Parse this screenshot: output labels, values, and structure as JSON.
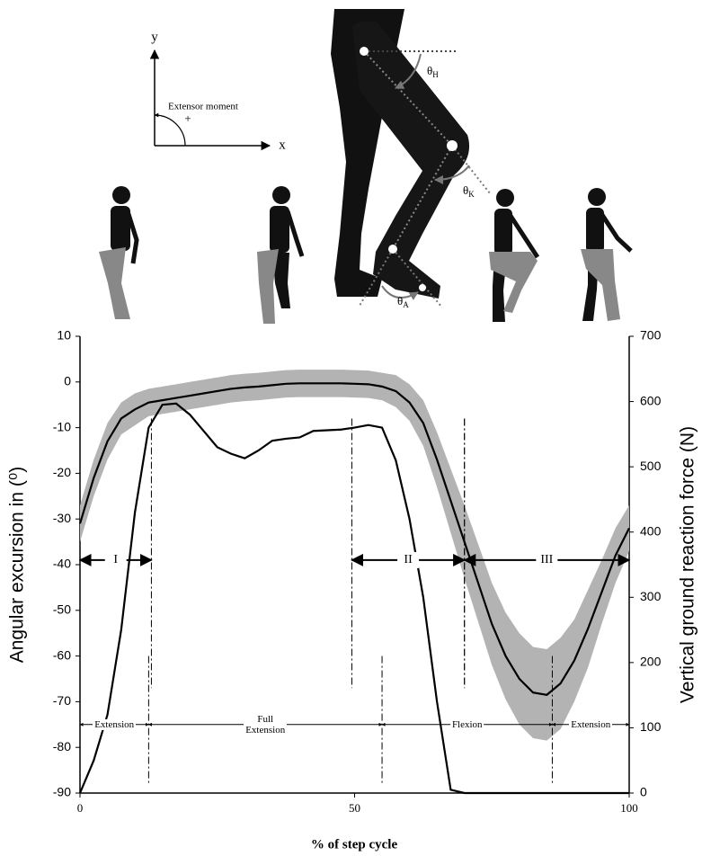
{
  "illustration": {
    "axis_y": "y",
    "axis_x": "x",
    "moment_label": "Extensor moment",
    "sign": "+",
    "angles": [
      {
        "symbol": "θ",
        "sub": "H"
      },
      {
        "symbol": "θ",
        "sub": "K"
      },
      {
        "symbol": "θ",
        "sub": "A"
      }
    ]
  },
  "chart_data": {
    "type": "line",
    "xlabel": "% of step cycle",
    "ylabel": "Angular excursion in (⁰)",
    "y2label": "Vertical ground reaction force (N)",
    "xlim": [
      0,
      100
    ],
    "xticks": [
      0,
      50,
      100
    ],
    "ylim": [
      -90,
      10
    ],
    "yticks": [
      -90,
      -80,
      -70,
      -60,
      -50,
      -40,
      -30,
      -20,
      -10,
      0,
      10
    ],
    "y2lim": [
      0,
      700
    ],
    "y2ticks": [
      0,
      100,
      200,
      300,
      400,
      500,
      600,
      700
    ],
    "x": [
      0,
      2.5,
      5,
      7.5,
      10,
      12.5,
      15,
      17.5,
      20,
      22.5,
      25,
      27.5,
      30,
      32.5,
      35,
      37.5,
      40,
      42.5,
      45,
      47.5,
      50,
      52.5,
      55,
      57.5,
      60,
      62.5,
      65,
      67.5,
      70,
      72.5,
      75,
      77.5,
      80,
      82.5,
      85,
      87.5,
      90,
      92.5,
      95,
      97.5,
      100
    ],
    "series": [
      {
        "color": "#b3b3b3",
        "upper": [
          -27,
          -17,
          -9,
          -4.5,
          -2.5,
          -1.5,
          -1,
          -0.5,
          0,
          0.5,
          1,
          1.5,
          1.8,
          2,
          2.3,
          2.6,
          2.7,
          2.7,
          2.7,
          2.7,
          2.6,
          2.5,
          2,
          1.5,
          -0.5,
          -4,
          -11,
          -19,
          -27,
          -35.5,
          -44,
          -50.5,
          -55,
          -58,
          -58.5,
          -56,
          -52,
          -45.5,
          -39,
          -32,
          -27
        ],
        "lower": [
          -35,
          -25,
          -17,
          -11.5,
          -9.5,
          -7.5,
          -7,
          -6.5,
          -6,
          -5.5,
          -5,
          -4.5,
          -4.2,
          -4,
          -3.7,
          -3.4,
          -3.3,
          -3.3,
          -3.3,
          -3.3,
          -3.4,
          -3.5,
          -4,
          -5.5,
          -8.5,
          -14,
          -23,
          -33,
          -43,
          -52.5,
          -62,
          -69.5,
          -75,
          -78,
          -78.5,
          -76,
          -70,
          -62.5,
          -53,
          -44,
          -37
        ]
      },
      {
        "color": "#000000",
        "values": [
          -31,
          -21,
          -13,
          -8,
          -6,
          -4.5,
          -4,
          -3.5,
          -3,
          -2.5,
          -2,
          -1.5,
          -1.2,
          -1,
          -0.7,
          -0.4,
          -0.3,
          -0.3,
          -0.3,
          -0.3,
          -0.4,
          -0.5,
          -1,
          -2,
          -4.5,
          -9,
          -17,
          -26,
          -35,
          -44,
          -53,
          -60,
          -65,
          -68,
          -68.5,
          -66,
          -61,
          -54,
          -46,
          -38,
          -32
        ]
      },
      {
        "color": "#000000",
        "axis": "y2",
        "values": [
          0,
          50,
          120,
          250,
          430,
          560,
          595,
          597,
          580,
          555,
          530,
          520,
          513,
          525,
          540,
          543,
          545,
          555,
          556,
          557,
          560,
          564,
          560,
          510,
          420,
          300,
          140,
          5,
          0,
          0,
          0,
          0,
          0,
          0,
          0,
          0,
          0,
          0,
          0,
          0,
          0
        ]
      }
    ],
    "phases": [
      {
        "label": "I",
        "from": 0,
        "to": 13
      },
      {
        "label": "II",
        "from": 49.5,
        "to": 70
      },
      {
        "label": "III",
        "from": 70,
        "to": 100
      }
    ],
    "regions": [
      {
        "label": "Extension",
        "from": 0,
        "to": 12.5
      },
      {
        "label": "Full Extension",
        "from": 12.5,
        "to": 55
      },
      {
        "label": "Flexion",
        "from": 55,
        "to": 86
      },
      {
        "label": "Extension",
        "from": 86,
        "to": 100
      }
    ]
  }
}
